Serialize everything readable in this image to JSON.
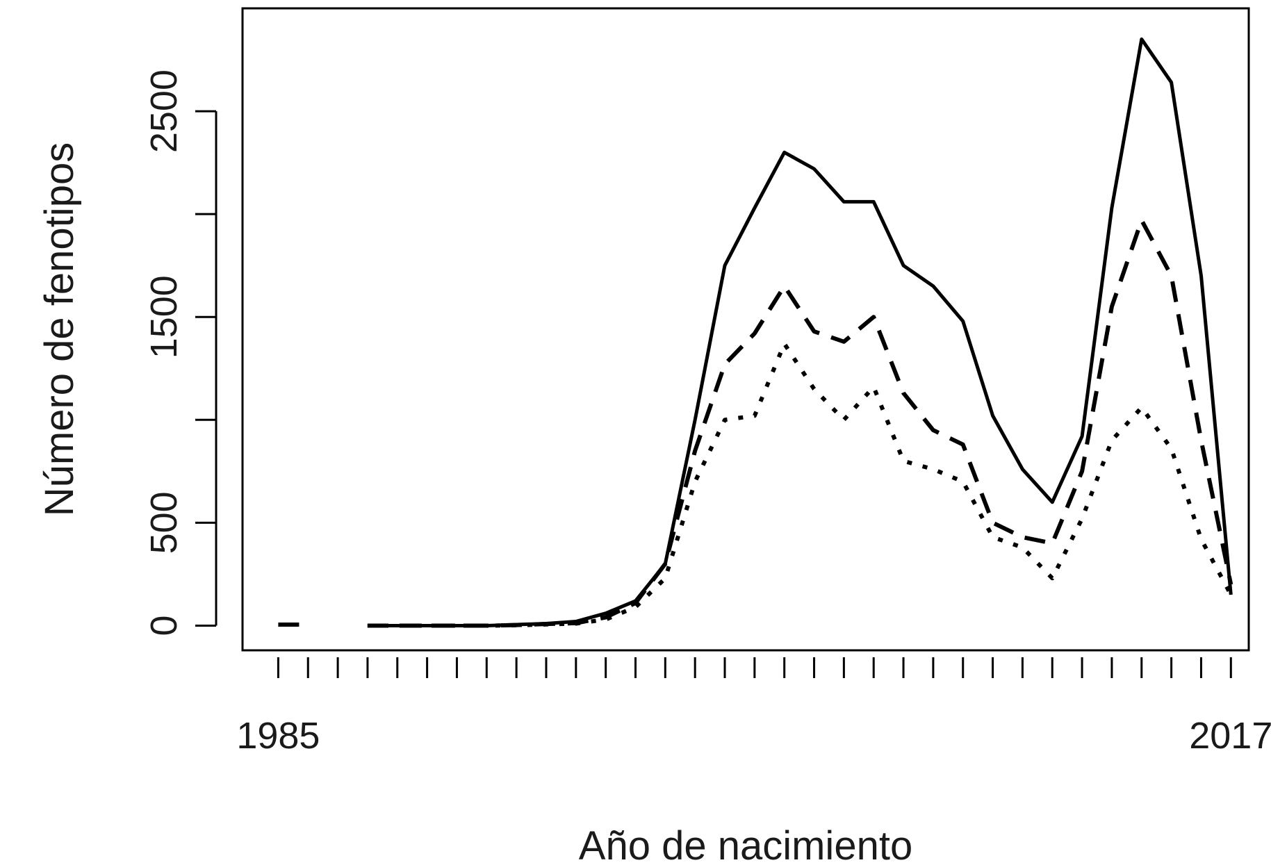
{
  "chart_data": {
    "type": "line",
    "xlabel": "Año de nacimiento",
    "ylabel": "Número de fenotipos",
    "xlim": [
      1983.8,
      2017.6
    ],
    "ylim": [
      -120,
      3000
    ],
    "x_tick_labels": [
      {
        "value": 1985,
        "label": "1985"
      },
      {
        "value": 2017,
        "label": "2017"
      }
    ],
    "y_ticks": [
      {
        "value": 0,
        "label": "0"
      },
      {
        "value": 500,
        "label": "500"
      },
      {
        "value": 1000,
        "label": ""
      },
      {
        "value": 1500,
        "label": "1500"
      },
      {
        "value": 2000,
        "label": ""
      },
      {
        "value": 2500,
        "label": "2500"
      }
    ],
    "grid": false,
    "x": [
      1985,
      1986,
      1987,
      1988,
      1989,
      1990,
      1991,
      1992,
      1993,
      1994,
      1995,
      1996,
      1997,
      1998,
      1999,
      2000,
      2001,
      2002,
      2003,
      2004,
      2005,
      2006,
      2007,
      2008,
      2009,
      2010,
      2011,
      2012,
      2013,
      2014,
      2015,
      2016,
      2017
    ],
    "series": [
      {
        "style": "solid",
        "values": [
          null,
          null,
          null,
          0,
          0,
          0,
          0,
          0,
          5,
          10,
          20,
          60,
          120,
          300,
          1000,
          1750,
          2030,
          2300,
          2220,
          2060,
          2060,
          1750,
          1650,
          1480,
          1020,
          760,
          600,
          920,
          2030,
          2850,
          2640,
          1700,
          150
        ]
      },
      {
        "style": "dashed",
        "values": [
          5,
          5,
          null,
          0,
          0,
          0,
          0,
          0,
          3,
          8,
          12,
          40,
          110,
          300,
          850,
          1270,
          1420,
          1650,
          1430,
          1380,
          1500,
          1130,
          950,
          880,
          500,
          430,
          400,
          750,
          1550,
          1970,
          1700,
          900,
          200
        ]
      },
      {
        "style": "dotted",
        "values": [
          null,
          null,
          null,
          0,
          0,
          0,
          0,
          0,
          2,
          6,
          10,
          30,
          90,
          230,
          700,
          1000,
          1020,
          1370,
          1150,
          1000,
          1160,
          800,
          760,
          700,
          430,
          380,
          230,
          520,
          900,
          1060,
          860,
          420,
          150
        ]
      }
    ]
  }
}
